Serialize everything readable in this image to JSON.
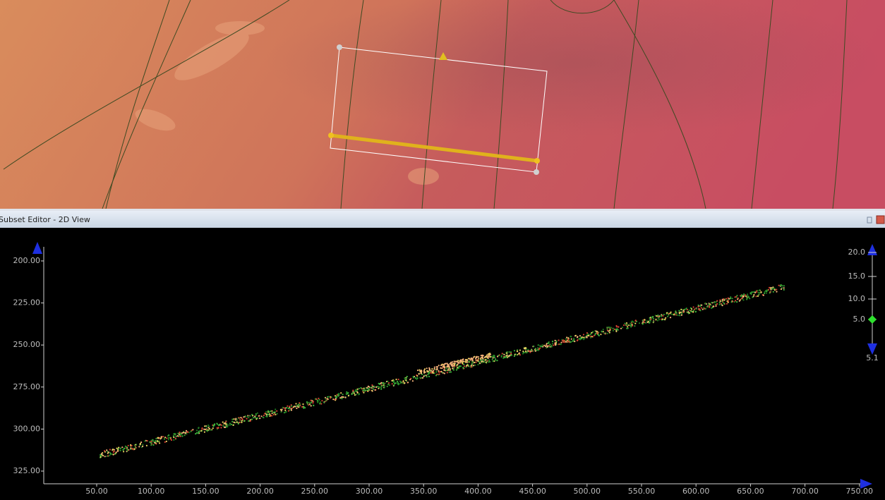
{
  "panel": {
    "title": "Subset Editor - 2D View"
  },
  "plot": {
    "y_ticks": [
      "200.00",
      "225.00",
      "250.00",
      "275.00",
      "300.00",
      "325.00"
    ],
    "x_ticks": [
      "50.00",
      "100.00",
      "150.00",
      "200.00",
      "250.00",
      "300.00",
      "350.00",
      "400.00",
      "450.00",
      "500.00",
      "550.00",
      "600.00",
      "650.00",
      "700.00",
      "750.00"
    ],
    "scale": {
      "ticks": [
        "20.0",
        "15.0",
        "10.0",
        "5.0"
      ],
      "value": "5.1"
    }
  }
}
